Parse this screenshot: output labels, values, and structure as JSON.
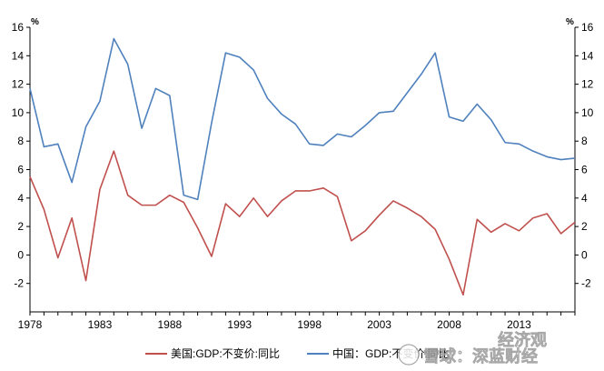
{
  "chart_data": {
    "type": "line",
    "x": [
      1978,
      1979,
      1980,
      1981,
      1982,
      1983,
      1984,
      1985,
      1986,
      1987,
      1988,
      1989,
      1990,
      1991,
      1992,
      1993,
      1994,
      1995,
      1996,
      1997,
      1998,
      1999,
      2000,
      2001,
      2002,
      2003,
      2004,
      2005,
      2006,
      2007,
      2008,
      2009,
      2010,
      2011,
      2012,
      2013,
      2014,
      2015,
      2016,
      2017
    ],
    "xticks": [
      "1978",
      "1983",
      "1988",
      "1993",
      "1998",
      "2003",
      "2008",
      "2013"
    ],
    "xlim": [
      1978,
      2017
    ],
    "ylim": [
      -4,
      16
    ],
    "yticks": [
      "-2",
      "0",
      "2",
      "4",
      "6",
      "8",
      "10",
      "12",
      "14",
      "16"
    ],
    "y_unit_left": "%",
    "y_unit_right": "%",
    "grid": false,
    "legend_position": "bottom",
    "series": [
      {
        "name": "美国:GDP:不变价:同比",
        "color": "#c0504d",
        "values": [
          5.5,
          3.2,
          -0.2,
          2.6,
          -1.8,
          4.6,
          7.3,
          4.2,
          3.5,
          3.5,
          4.2,
          3.7,
          1.9,
          -0.1,
          3.6,
          2.7,
          4.0,
          2.7,
          3.8,
          4.5,
          4.5,
          4.7,
          4.1,
          1.0,
          1.7,
          2.8,
          3.8,
          3.3,
          2.7,
          1.8,
          -0.3,
          -2.8,
          2.5,
          1.6,
          2.2,
          1.7,
          2.6,
          2.9,
          1.5,
          2.3
        ]
      },
      {
        "name": "中国：GDP:不变价:同比",
        "color": "#4f81bd",
        "values": [
          11.7,
          7.6,
          7.8,
          5.1,
          9.0,
          10.8,
          15.2,
          13.4,
          8.9,
          11.7,
          11.2,
          4.2,
          3.9,
          9.3,
          14.2,
          13.9,
          13.0,
          11.0,
          9.9,
          9.2,
          7.8,
          7.7,
          8.5,
          8.3,
          9.1,
          10.0,
          10.1,
          11.4,
          12.7,
          14.2,
          9.7,
          9.4,
          10.6,
          9.5,
          7.9,
          7.8,
          7.3,
          6.9,
          6.7,
          6.8
        ]
      }
    ]
  },
  "watermark": {
    "lines": [
      "经济观",
      "雪球：深蓝财经"
    ]
  }
}
